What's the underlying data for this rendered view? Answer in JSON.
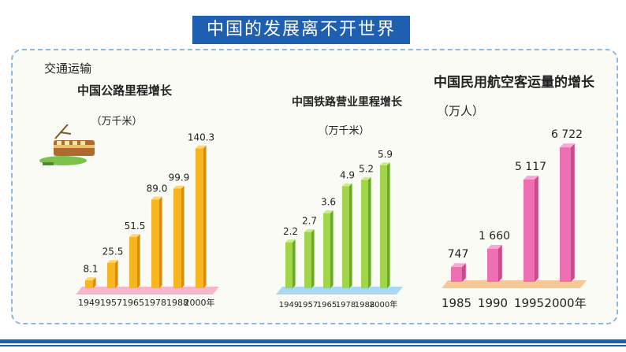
{
  "banner": "中国的发展离不开世界",
  "section": "交通运输",
  "chart_data": [
    {
      "type": "bar",
      "title": "中国公路里程增长",
      "unit": "（万千米）",
      "categories": [
        "1949",
        "1957",
        "1965",
        "1978",
        "1988",
        "2000年"
      ],
      "value_labels": [
        "8.1",
        "25.5",
        "51.5",
        "89.0",
        "99.9",
        "140.3"
      ],
      "values": [
        8.1,
        25.5,
        51.5,
        89.0,
        99.9,
        140.3
      ],
      "ylim": [
        0,
        150
      ],
      "colors": {
        "bar": "#f7b51f",
        "side": "#d98d0a",
        "top": "#ffd770",
        "base": "#f8b6cc"
      }
    },
    {
      "type": "bar",
      "title": "中国铁路营业里程增长",
      "unit": "（万千米）",
      "categories": [
        "1949",
        "1957",
        "1965",
        "1978",
        "1988",
        "2000年"
      ],
      "value_labels": [
        "2.2",
        "2.7",
        "3.6",
        "4.9",
        "5.2",
        "5.9"
      ],
      "values": [
        2.2,
        2.7,
        3.6,
        4.9,
        5.2,
        5.9
      ],
      "ylim": [
        0,
        6.5
      ],
      "colors": {
        "bar": "#9fd64a",
        "side": "#6ea828",
        "top": "#c8ee8a",
        "base": "#a9d8f2"
      }
    },
    {
      "type": "bar",
      "title": "中国民用航空客运量的增长",
      "unit": "（万人）",
      "categories": [
        "1985",
        "1990",
        "1995",
        "2000年"
      ],
      "value_labels": [
        "747",
        "1 660",
        "5 117",
        "6 722"
      ],
      "values": [
        747,
        1660,
        5117,
        6722
      ],
      "ylim": [
        0,
        7000
      ],
      "colors": {
        "bar": "#ee6fb2",
        "side": "#c94b8e",
        "top": "#f8a9d2",
        "base": "#f6c896"
      }
    }
  ]
}
